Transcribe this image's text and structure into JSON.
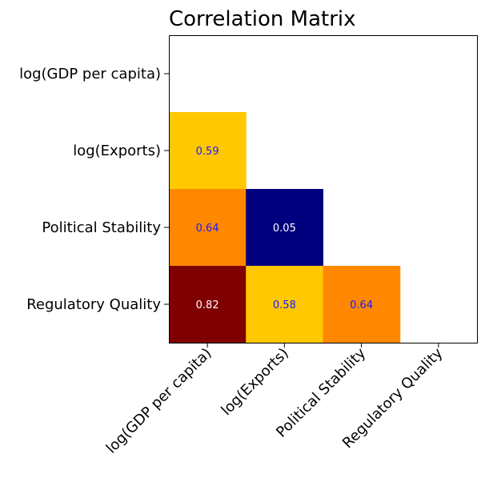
{
  "chart_data": {
    "type": "heatmap",
    "title": "Correlation Matrix",
    "xlabel": "",
    "ylabel": "",
    "variables": [
      "log(GDP per capita)",
      "log(Exports)",
      "Political Stability",
      "Regulatory Quality"
    ],
    "mask": "upper-triangle-including-diagonal",
    "cells": [
      {
        "row": 1,
        "col": 0,
        "value": 0.59,
        "label": "0.59",
        "color": "#ffc800",
        "text_color": "#1a1aff"
      },
      {
        "row": 2,
        "col": 0,
        "value": 0.64,
        "label": "0.64",
        "color": "#ff8800",
        "text_color": "#1a1aff"
      },
      {
        "row": 2,
        "col": 1,
        "value": 0.05,
        "label": "0.05",
        "color": "#00007f",
        "text_color": "#ffffff"
      },
      {
        "row": 3,
        "col": 0,
        "value": 0.82,
        "label": "0.82",
        "color": "#7f0000",
        "text_color": "#ffffff"
      },
      {
        "row": 3,
        "col": 1,
        "value": 0.58,
        "label": "0.58",
        "color": "#ffc800",
        "text_color": "#1a1aff"
      },
      {
        "row": 3,
        "col": 2,
        "value": 0.64,
        "label": "0.64",
        "color": "#ff8800",
        "text_color": "#1a1aff"
      }
    ],
    "colormap": "jet",
    "grid": false
  }
}
